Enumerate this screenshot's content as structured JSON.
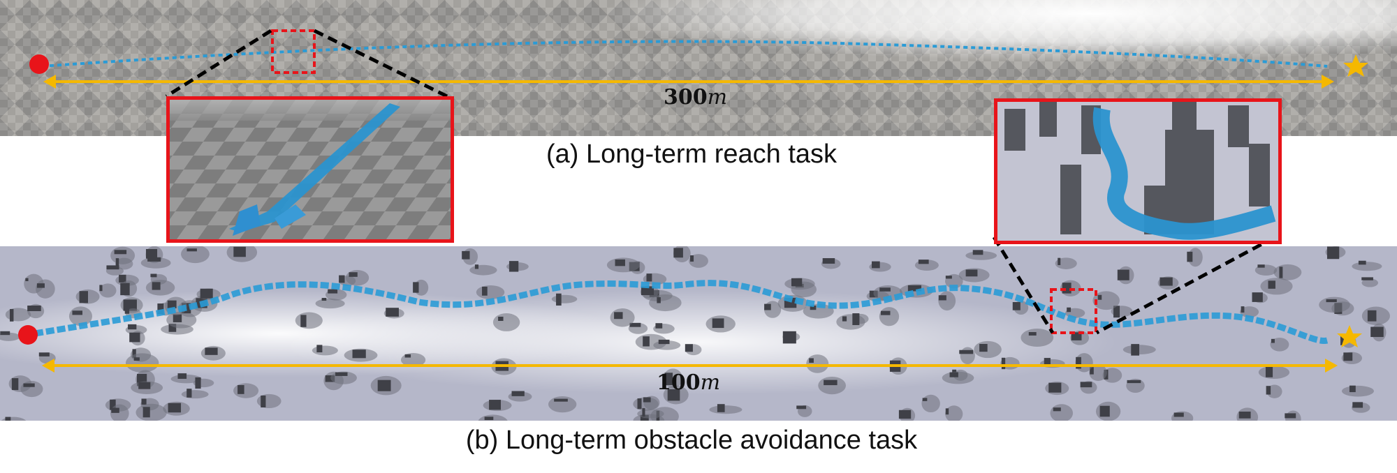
{
  "figure": {
    "panel_a": {
      "caption": "(a) Long-term reach task",
      "distance_value": "300",
      "distance_unit": "m"
    },
    "panel_b": {
      "caption": "(b) Long-term obstacle avoidance task",
      "distance_value": "100",
      "distance_unit": "m"
    },
    "colors": {
      "start_marker": "#e8141a",
      "goal_marker": "#f5b800",
      "distance_arrow": "#f5b800",
      "trajectory": "#2a9bd6",
      "inset_border": "#e8141a",
      "zoom_box": "#e8141a",
      "zoom_lines": "#000000"
    },
    "icons": {
      "start": "red-circle",
      "goal": "gold-star"
    }
  }
}
